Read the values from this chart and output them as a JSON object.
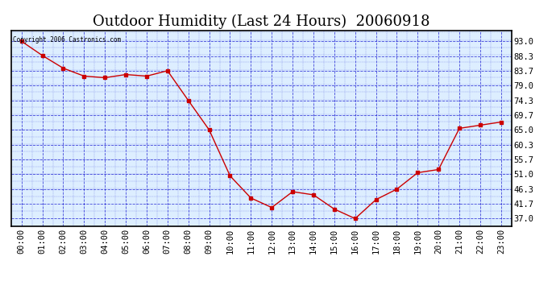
{
  "title": "Outdoor Humidity (Last 24 Hours)  20060918",
  "copyright_text": "Copyright 2006 Castronics.com",
  "hours": [
    0,
    1,
    2,
    3,
    4,
    5,
    6,
    7,
    8,
    9,
    10,
    11,
    12,
    13,
    14,
    15,
    16,
    17,
    18,
    19,
    20,
    21,
    22,
    23
  ],
  "humidity": [
    93.0,
    88.5,
    84.5,
    82.0,
    81.5,
    82.5,
    82.0,
    83.7,
    74.3,
    65.0,
    50.5,
    43.5,
    40.5,
    45.5,
    44.5,
    40.0,
    37.0,
    43.0,
    46.3,
    51.5,
    52.5,
    65.5,
    66.5,
    67.5
  ],
  "yticks": [
    37.0,
    41.7,
    46.3,
    51.0,
    55.7,
    60.3,
    65.0,
    69.7,
    74.3,
    79.0,
    83.7,
    88.3,
    93.0
  ],
  "xtick_labels": [
    "00:00",
    "01:00",
    "02:00",
    "03:00",
    "04:00",
    "05:00",
    "06:00",
    "07:00",
    "08:00",
    "09:00",
    "10:00",
    "11:00",
    "12:00",
    "13:00",
    "14:00",
    "15:00",
    "16:00",
    "17:00",
    "18:00",
    "19:00",
    "20:00",
    "21:00",
    "22:00",
    "23:00"
  ],
  "line_color": "#cc0000",
  "marker_color": "#cc0000",
  "grid_color": "#0000cc",
  "plot_bg": "#ddeeff",
  "title_fontsize": 13,
  "tick_fontsize": 7.5,
  "ylim_min": 34.5,
  "ylim_max": 96.5
}
